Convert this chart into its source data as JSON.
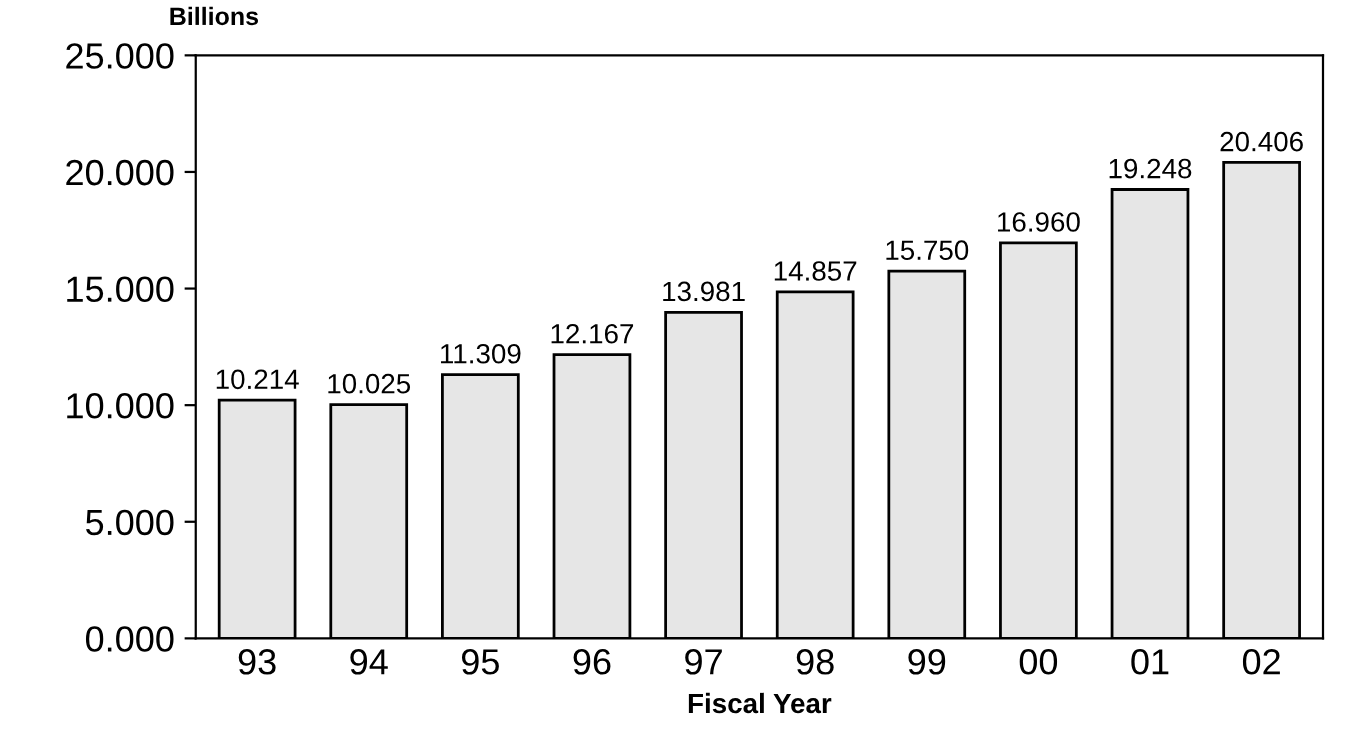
{
  "chart_data": {
    "type": "bar",
    "ylabel": "Billions",
    "xlabel": "Fiscal Year",
    "categories": [
      "93",
      "94",
      "95",
      "96",
      "97",
      "98",
      "99",
      "00",
      "01",
      "02"
    ],
    "values": [
      10.214,
      10.025,
      11.309,
      12.167,
      13.981,
      14.857,
      15.75,
      16.96,
      19.248,
      20.406
    ],
    "value_labels": [
      "10.214",
      "10.025",
      "11.309",
      "12.167",
      "13.981",
      "14.857",
      "15.750",
      "16.960",
      "19.248",
      "20.406"
    ],
    "color": "#e6e6e6",
    "ylim": [
      0,
      25
    ],
    "yticks": [
      {
        "value": 0,
        "label": "0.000"
      },
      {
        "value": 5,
        "label": "5.000"
      },
      {
        "value": 10,
        "label": "10.000"
      },
      {
        "value": 15,
        "label": "15.000"
      },
      {
        "value": 20,
        "label": "20.000"
      },
      {
        "value": 25,
        "label": "25.000"
      }
    ],
    "grid": false,
    "legend": false
  }
}
